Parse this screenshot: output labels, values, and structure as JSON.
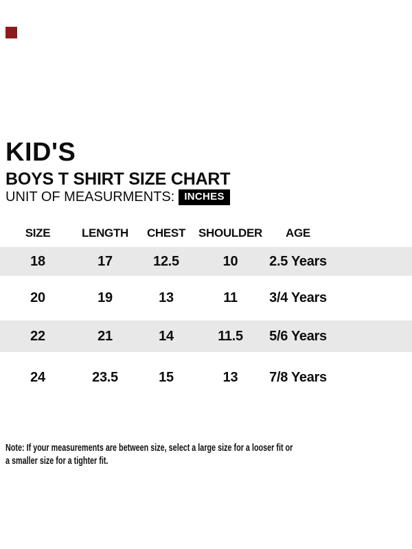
{
  "page": {
    "background_color": "#ffffff",
    "accent_square_color": "#8e1b1b",
    "zebra_row_color": "#e8e8e8",
    "badge_bg_color": "#000000",
    "badge_text_color": "#ffffff"
  },
  "header": {
    "title": "KID'S",
    "subtitle": "BOYS T SHIRT SIZE CHART",
    "unit_label": "UNIT OF MEASURMENTS:",
    "unit_value": "INCHES"
  },
  "chart_data": {
    "type": "table",
    "title": "BOYS T SHIRT SIZE CHART",
    "unit": "INCHES",
    "columns": [
      "SIZE",
      "LENGTH",
      "CHEST",
      "SHOULDER",
      "AGE"
    ],
    "rows": [
      [
        "18",
        "17",
        "12.5",
        "10",
        "2.5 Years"
      ],
      [
        "20",
        "19",
        "13",
        "11",
        "3/4 Years"
      ],
      [
        "22",
        "21",
        "14",
        "11.5",
        "5/6 Years"
      ],
      [
        "24",
        "23.5",
        "15",
        "13",
        "7/8 Years"
      ]
    ],
    "layout_hints": {
      "zebra_striping": "rows 1 and 3 shaded gray",
      "alignment": "center"
    }
  },
  "note": {
    "line1": "Note: If your measurements are between size, select a large size for a looser fit or",
    "line2": "a smaller size for a tighter fit."
  }
}
